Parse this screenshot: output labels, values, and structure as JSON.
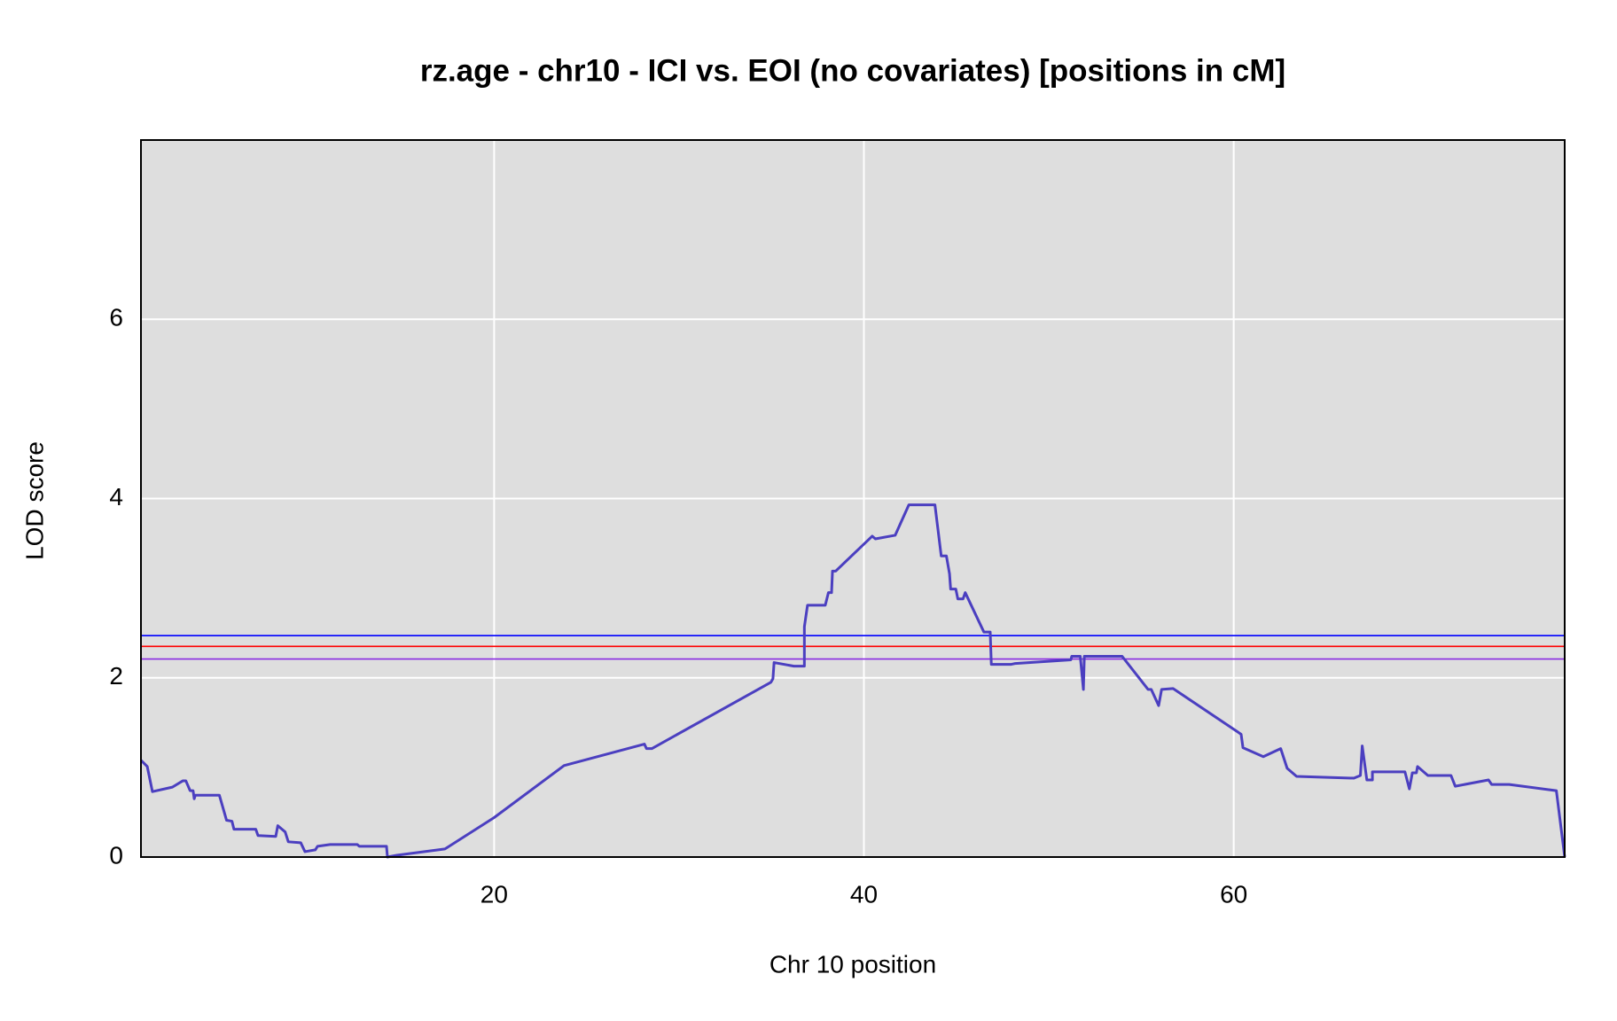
{
  "chart_data": {
    "type": "line",
    "title": "rz.age - chr10 - ICI vs. EOI (no covariates) [positions in cM]",
    "x_label": "Chr 10 position",
    "y_label": "LOD score",
    "xlim": [
      0.9,
      77.9
    ],
    "ylim": [
      0,
      8
    ],
    "xticks": [
      20,
      40,
      60
    ],
    "yticks": [
      0,
      2,
      4,
      6
    ],
    "grid": true,
    "background": "#dedede",
    "hlines": [
      {
        "value": 2.47,
        "color": "#0000ff"
      },
      {
        "value": 2.35,
        "color": "#ff0000"
      },
      {
        "value": 2.21,
        "color": "#8a2be2"
      }
    ],
    "series": [
      {
        "color": "#4b3fc0",
        "x": [
          0.9,
          1.24,
          1.52,
          2.6,
          3.16,
          3.33,
          3.56,
          3.72,
          3.78,
          3.84,
          5.14,
          5.53,
          5.82,
          5.93,
          7.11,
          7.23,
          8.19,
          8.3,
          8.7,
          8.87,
          9.54,
          9.77,
          10.33,
          10.45,
          11.13,
          12.6,
          12.71,
          14.18,
          14.23,
          14.74,
          17.34,
          20,
          23.78,
          28.13,
          28.24,
          28.53,
          34.97,
          35.08,
          35.14,
          36.21,
          36.78,
          36.78,
          36.95,
          37.91,
          38.08,
          38.25,
          38.3,
          38.47,
          40.45,
          40.62,
          41.69,
          42.43,
          43.84,
          44.18,
          44.46,
          44.63,
          44.69,
          44.97,
          45.08,
          45.36,
          45.48,
          46.49,
          46.83,
          46.89,
          47.97,
          48.19,
          51.19,
          51.24,
          51.7,
          51.87,
          51.92,
          53.96,
          55.37,
          55.54,
          55.94,
          56.1,
          56.72,
          60.4,
          60.5,
          61.6,
          62.54,
          62.89,
          63.4,
          66.5,
          66.85,
          66.95,
          67.2,
          67.5,
          67.5,
          69.26,
          69.5,
          69.66,
          69.88,
          69.94,
          70.5,
          71.75,
          71.98,
          73.78,
          73.95,
          74.9,
          77.45,
          77.9
        ],
        "values": [
          1.08,
          1.01,
          0.73,
          0.78,
          0.85,
          0.85,
          0.74,
          0.74,
          0.65,
          0.69,
          0.69,
          0.41,
          0.4,
          0.31,
          0.31,
          0.24,
          0.23,
          0.35,
          0.28,
          0.17,
          0.16,
          0.06,
          0.08,
          0.12,
          0.14,
          0.14,
          0.12,
          0.12,
          0.0,
          0.02,
          0.09,
          0.44,
          1.02,
          1.26,
          1.21,
          1.21,
          1.95,
          1.99,
          2.17,
          2.13,
          2.13,
          2.57,
          2.81,
          2.81,
          2.95,
          2.95,
          3.19,
          3.19,
          3.58,
          3.55,
          3.59,
          3.93,
          3.93,
          3.36,
          3.36,
          3.16,
          2.99,
          2.99,
          2.88,
          2.88,
          2.95,
          2.51,
          2.51,
          2.15,
          2.15,
          2.16,
          2.2,
          2.24,
          2.24,
          1.87,
          2.24,
          2.24,
          1.87,
          1.87,
          1.69,
          1.87,
          1.88,
          1.37,
          1.22,
          1.12,
          1.21,
          0.99,
          0.9,
          0.88,
          0.91,
          1.24,
          0.86,
          0.86,
          0.95,
          0.95,
          0.76,
          0.94,
          0.94,
          1.01,
          0.91,
          0.91,
          0.79,
          0.86,
          0.81,
          0.81,
          0.74,
          0.0
        ]
      }
    ]
  }
}
